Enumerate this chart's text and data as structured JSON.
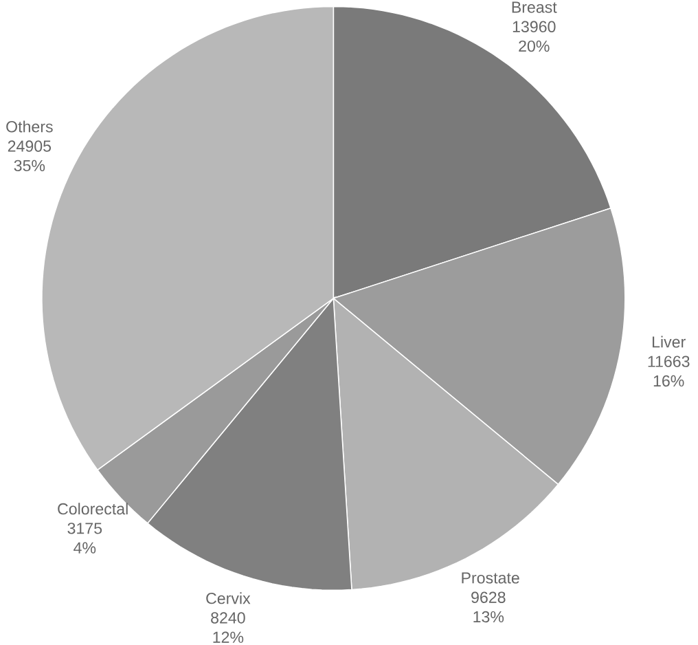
{
  "chart_data": {
    "type": "pie",
    "categories": [
      "Breast",
      "Liver",
      "Prostate",
      "Cervix",
      "Colorectal",
      "Others"
    ],
    "values": [
      20,
      16,
      13,
      12,
      4,
      35
    ],
    "colors": [
      "#7a7a7a",
      "#9c9c9c",
      "#b2b2b2",
      "#808080",
      "#9a9a9a",
      "#b8b8b8"
    ],
    "value_labels": [
      "13960 20%",
      "11663 16%",
      "9628 13%",
      "8240 12%",
      "3175 4%",
      "24905 35%"
    ]
  }
}
